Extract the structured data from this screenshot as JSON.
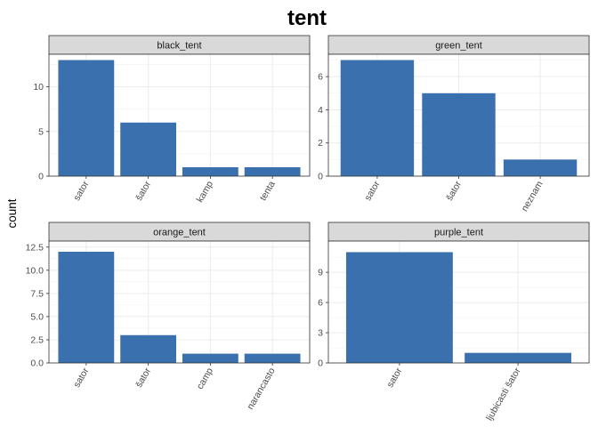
{
  "chart_data": {
    "type": "bar",
    "title": "tent",
    "ylabel": "count",
    "xlabel": "",
    "grid": true,
    "bar_color": "#3A70AD",
    "strip_color": "#D9D9D9",
    "panels": [
      {
        "name": "black_tent",
        "categories": [
          "sator",
          "šator",
          "kamp",
          "tenta"
        ],
        "values": [
          13,
          6,
          1,
          1
        ],
        "ylim": [
          0,
          13.65
        ],
        "yticks": [
          0,
          5,
          10
        ],
        "ytick_labels": [
          "0",
          "5",
          "10"
        ]
      },
      {
        "name": "green_tent",
        "categories": [
          "sator",
          "šator",
          "neznam"
        ],
        "values": [
          7,
          5,
          1
        ],
        "ylim": [
          0,
          7.35
        ],
        "yticks": [
          0,
          2,
          4,
          6
        ],
        "ytick_labels": [
          "0",
          "2",
          "4",
          "6"
        ]
      },
      {
        "name": "orange_tent",
        "categories": [
          "sator",
          "šator",
          "camp",
          "narancasto"
        ],
        "values": [
          12,
          3,
          1,
          1
        ],
        "ylim": [
          0,
          13.15
        ],
        "yticks": [
          0,
          2.5,
          5,
          7.5,
          10,
          12.5
        ],
        "ytick_labels": [
          "0.0",
          "2.5",
          "5.0",
          "7.5",
          "10.0",
          "12.5"
        ]
      },
      {
        "name": "purple_tent",
        "categories": [
          "sator",
          "ljubicasti šator"
        ],
        "values": [
          11,
          1
        ],
        "ylim": [
          0,
          12.1
        ],
        "yticks": [
          0,
          3,
          6,
          9
        ],
        "ytick_labels": [
          "0",
          "3",
          "6",
          "9"
        ]
      }
    ]
  }
}
